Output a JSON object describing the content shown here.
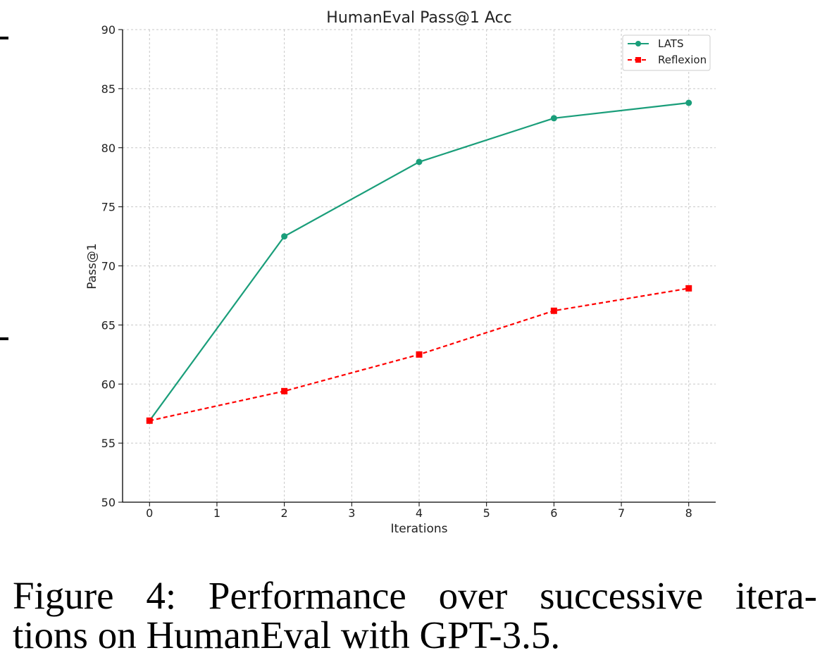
{
  "chart_data": {
    "type": "line",
    "title": "HumanEval Pass@1 Acc",
    "xlabel": "Iterations",
    "ylabel": "Pass@1",
    "xlim": [
      -0.4,
      8.4
    ],
    "ylim": [
      50,
      90
    ],
    "xticks": [
      0,
      1,
      2,
      3,
      4,
      5,
      6,
      7,
      8
    ],
    "yticks": [
      50,
      55,
      60,
      65,
      70,
      75,
      80,
      85,
      90
    ],
    "grid": true,
    "legend_position": "top-right",
    "series": [
      {
        "name": "LATS",
        "color": "#1a9e7a",
        "line_style": "solid",
        "marker": "circle",
        "x": [
          0,
          2,
          4,
          6,
          8
        ],
        "y": [
          56.9,
          72.5,
          78.8,
          82.5,
          83.8
        ]
      },
      {
        "name": "Reflexion",
        "color": "#ff0000",
        "line_style": "dashed",
        "marker": "square",
        "x": [
          0,
          2,
          4,
          6,
          8
        ],
        "y": [
          56.9,
          59.4,
          62.5,
          66.2,
          68.1
        ]
      }
    ]
  },
  "caption": {
    "line1": "Figure 4:  Performance over successive itera-",
    "line2": "tions on HumanEval with GPT-3.5."
  }
}
